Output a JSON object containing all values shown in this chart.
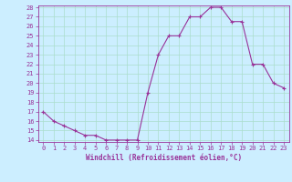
{
  "x": [
    0,
    1,
    2,
    3,
    4,
    5,
    6,
    7,
    8,
    9,
    10,
    11,
    12,
    13,
    14,
    15,
    16,
    17,
    18,
    19,
    20,
    21,
    22,
    23
  ],
  "y": [
    17,
    16,
    15.5,
    15,
    14.5,
    14.5,
    14,
    14,
    14,
    14,
    19,
    23,
    25,
    25,
    27,
    27,
    28,
    28,
    26.5,
    26.5,
    22,
    22,
    20,
    19.5
  ],
  "ylim": [
    14,
    28
  ],
  "xlim": [
    -0.5,
    23.5
  ],
  "yticks": [
    14,
    15,
    16,
    17,
    18,
    19,
    20,
    21,
    22,
    23,
    24,
    25,
    26,
    27,
    28
  ],
  "xticks": [
    0,
    1,
    2,
    3,
    4,
    5,
    6,
    7,
    8,
    9,
    10,
    11,
    12,
    13,
    14,
    15,
    16,
    17,
    18,
    19,
    20,
    21,
    22,
    23
  ],
  "xlabel": "Windchill (Refroidissement éolien,°C)",
  "line_color": "#993399",
  "bg_color": "#cceeff",
  "grid_color": "#aaddcc",
  "label_fontsize": 5,
  "xlabel_fontsize": 5.5
}
